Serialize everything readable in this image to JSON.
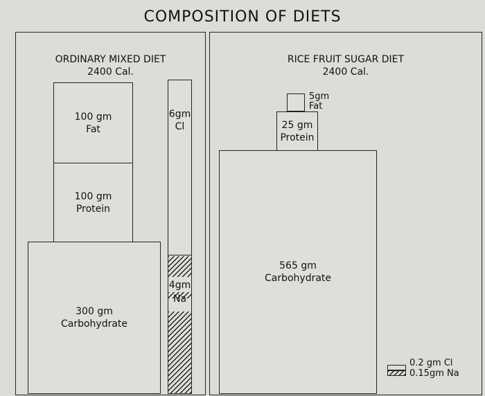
{
  "title": "COMPOSITION OF DIETS",
  "panels": {
    "left": {
      "name": "ORDINARY MIXED DIET",
      "calories": "2400 Cal.",
      "boxes": {
        "fat": {
          "amount": "100 gm",
          "nutrient": "Fat"
        },
        "protein": {
          "amount": "100 gm",
          "nutrient": "Protein"
        },
        "carbohydrate": {
          "amount": "300 gm",
          "nutrient": "Carbohydrate"
        }
      },
      "electrolytes": {
        "cl": {
          "amount": "6gm",
          "ion": "Cl"
        },
        "na": {
          "amount": "4gm",
          "ion": "Na"
        }
      }
    },
    "right": {
      "name": "RICE FRUIT SUGAR DIET",
      "calories": "2400 Cal.",
      "boxes": {
        "fat": {
          "amount": "5gm",
          "nutrient": "Fat"
        },
        "protein": {
          "amount": "25 gm",
          "nutrient": "Protein"
        },
        "carbohydrate": {
          "amount": "565 gm",
          "nutrient": "Carbohydrate"
        }
      },
      "electrolytes": {
        "cl": "0.2 gm Cl",
        "na": "0.15gm Na"
      }
    }
  }
}
